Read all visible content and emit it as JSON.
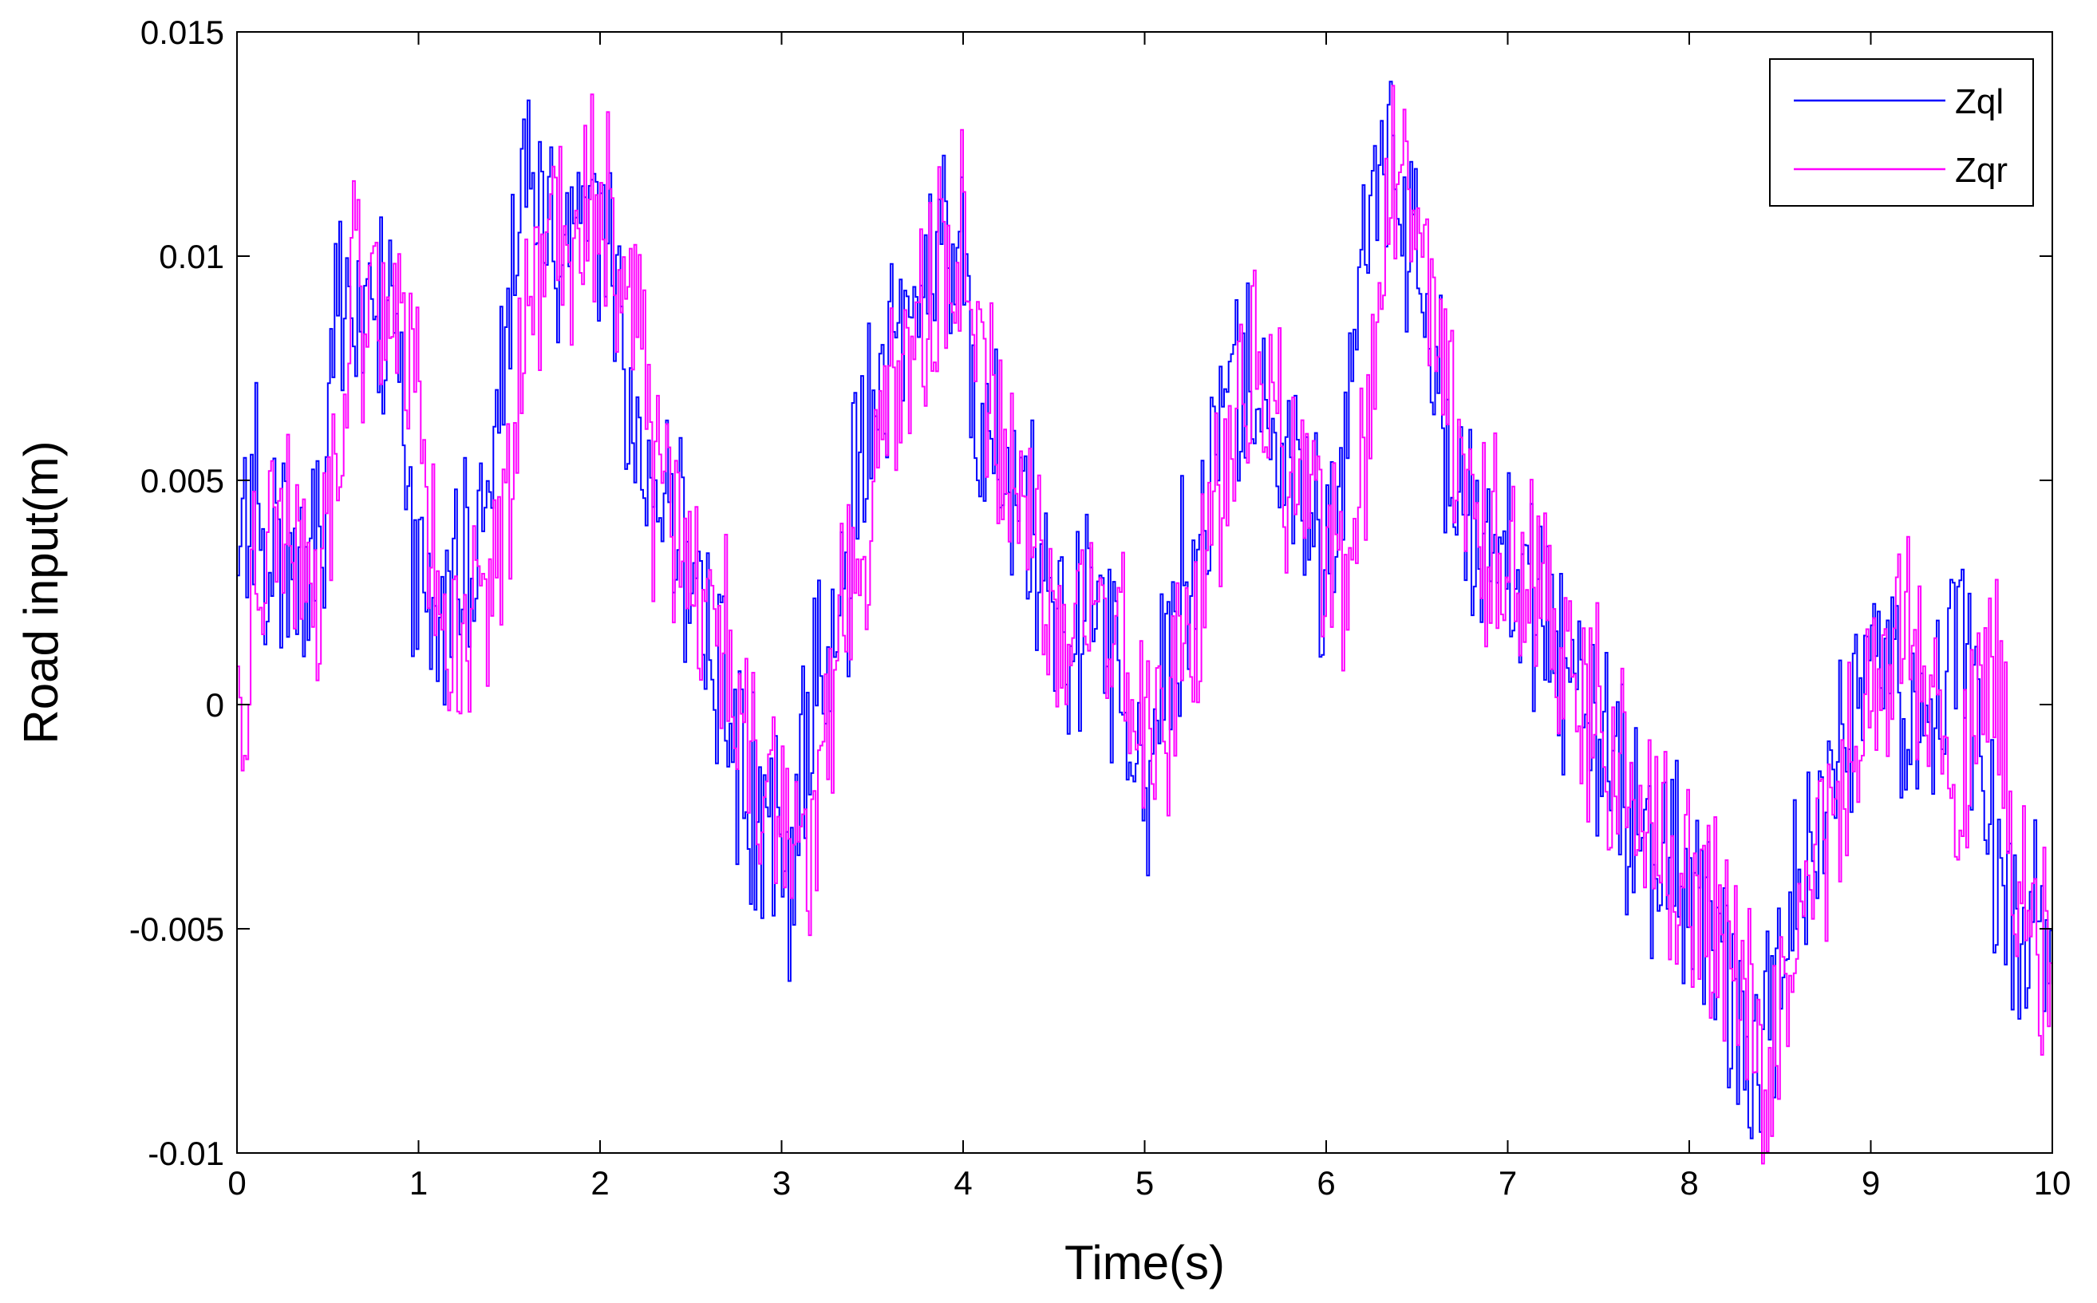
{
  "chart_data": {
    "type": "line",
    "title": "",
    "xlabel": "Time(s)",
    "ylabel": "Road input(m)",
    "xlim": [
      0,
      10
    ],
    "ylim": [
      -0.01,
      0.015
    ],
    "xticks": [
      0,
      1,
      2,
      3,
      4,
      5,
      6,
      7,
      8,
      9,
      10
    ],
    "xtick_labels": [
      "0",
      "1",
      "2",
      "3",
      "4",
      "5",
      "6",
      "7",
      "8",
      "9",
      "10"
    ],
    "yticks": [
      -0.01,
      -0.005,
      0,
      0.005,
      0.01,
      0.015
    ],
    "ytick_labels": [
      "-0.01",
      "-0.005",
      "0",
      "0.005",
      "0.01",
      "0.015"
    ],
    "grid": false,
    "legend_position": "top-right",
    "series": [
      {
        "name": "Zql",
        "color": "#0000ff",
        "x": [
          0,
          0.05,
          0.1,
          0.2,
          0.3,
          0.4,
          0.5,
          0.55,
          0.6,
          0.7,
          0.8,
          0.9,
          0.95,
          1.0,
          1.1,
          1.2,
          1.3,
          1.4,
          1.5,
          1.6,
          1.7,
          1.8,
          1.9,
          2.0,
          2.1,
          2.2,
          2.3,
          2.4,
          2.5,
          2.6,
          2.7,
          2.8,
          2.9,
          3.0,
          3.05,
          3.1,
          3.2,
          3.3,
          3.4,
          3.5,
          3.6,
          3.7,
          3.8,
          3.9,
          4.0,
          4.1,
          4.2,
          4.3,
          4.4,
          4.5,
          4.6,
          4.7,
          4.8,
          4.9,
          5.0,
          5.1,
          5.2,
          5.3,
          5.4,
          5.5,
          5.6,
          5.7,
          5.8,
          5.9,
          6.0,
          6.1,
          6.2,
          6.3,
          6.35,
          6.4,
          6.5,
          6.6,
          6.7,
          6.8,
          6.9,
          7.0,
          7.1,
          7.2,
          7.3,
          7.4,
          7.5,
          7.6,
          7.7,
          7.8,
          7.9,
          8.0,
          8.1,
          8.2,
          8.3,
          8.35,
          8.4,
          8.5,
          8.6,
          8.7,
          8.8,
          8.9,
          9.0,
          9.1,
          9.2,
          9.3,
          9.4,
          9.5,
          9.6,
          9.7,
          9.8,
          9.9,
          10.0
        ],
        "y": [
          0.0005,
          0.004,
          0.005,
          0.0035,
          0.003,
          0.0025,
          0.005,
          0.009,
          0.0095,
          0.0088,
          0.0085,
          0.009,
          0.004,
          0.0025,
          0.0015,
          0.002,
          0.004,
          0.0055,
          0.009,
          0.0115,
          0.0115,
          0.0095,
          0.012,
          0.011,
          0.009,
          0.0055,
          0.0045,
          0.004,
          0.0025,
          0.0015,
          0.0005,
          -0.0015,
          -0.0025,
          -0.0035,
          -0.0045,
          -0.002,
          0.0005,
          0.002,
          0.004,
          0.0065,
          0.008,
          0.009,
          0.0095,
          0.011,
          0.0095,
          0.0065,
          0.0055,
          0.005,
          0.0035,
          0.002,
          0.0015,
          0.002,
          0.0015,
          0.0005,
          -0.0015,
          0.0005,
          0.002,
          0.004,
          0.006,
          0.0075,
          0.0075,
          0.0065,
          0.005,
          0.0045,
          0.003,
          0.0055,
          0.009,
          0.0115,
          0.013,
          0.0115,
          0.0095,
          0.0075,
          0.0055,
          0.004,
          0.003,
          0.003,
          0.0025,
          0.002,
          0.001,
          0.0005,
          -0.001,
          -0.0015,
          -0.0025,
          -0.003,
          -0.0035,
          -0.0045,
          -0.005,
          -0.0055,
          -0.0075,
          -0.0085,
          -0.008,
          -0.006,
          -0.0045,
          -0.0035,
          -0.002,
          -0.0005,
          0.001,
          0.0015,
          -0.0005,
          -0.0015,
          0.0005,
          0.0015,
          -0.0005,
          -0.0035,
          -0.0055,
          -0.0045,
          -0.0045
        ]
      },
      {
        "name": "Zqr",
        "color": "#ff00ff",
        "x": [
          0,
          0.05,
          0.1,
          0.2,
          0.3,
          0.4,
          0.5,
          0.6,
          0.65,
          0.7,
          0.8,
          0.9,
          1.0,
          1.05,
          1.1,
          1.2,
          1.3,
          1.4,
          1.5,
          1.6,
          1.7,
          1.8,
          1.9,
          2.0,
          2.1,
          2.2,
          2.3,
          2.4,
          2.5,
          2.6,
          2.7,
          2.8,
          2.9,
          3.0,
          3.1,
          3.15,
          3.2,
          3.3,
          3.4,
          3.5,
          3.6,
          3.7,
          3.8,
          3.9,
          4.0,
          4.1,
          4.2,
          4.3,
          4.4,
          4.5,
          4.6,
          4.7,
          4.8,
          4.9,
          5.0,
          5.1,
          5.2,
          5.3,
          5.4,
          5.5,
          5.6,
          5.7,
          5.8,
          5.9,
          6.0,
          6.1,
          6.2,
          6.3,
          6.4,
          6.45,
          6.5,
          6.6,
          6.7,
          6.8,
          6.9,
          7.0,
          7.1,
          7.2,
          7.3,
          7.4,
          7.5,
          7.6,
          7.7,
          7.8,
          7.9,
          8.0,
          8.1,
          8.2,
          8.3,
          8.4,
          8.45,
          8.5,
          8.6,
          8.7,
          8.8,
          8.9,
          9.0,
          9.1,
          9.2,
          9.3,
          9.4,
          9.5,
          9.6,
          9.7,
          9.8,
          9.9,
          10.0
        ],
        "y": [
          0.0,
          -0.0005,
          0.003,
          0.0045,
          0.0035,
          0.003,
          0.003,
          0.008,
          0.0095,
          0.0088,
          0.009,
          0.0085,
          0.0075,
          0.003,
          0.0035,
          0.001,
          0.002,
          0.003,
          0.0045,
          0.0085,
          0.0105,
          0.0105,
          0.0105,
          0.0115,
          0.0095,
          0.0085,
          0.005,
          0.0045,
          0.003,
          0.002,
          0.0015,
          0.0,
          -0.002,
          -0.0025,
          -0.003,
          -0.004,
          -0.0015,
          0.0005,
          0.0025,
          0.0045,
          0.0065,
          0.0075,
          0.0085,
          0.0095,
          0.0105,
          0.0075,
          0.006,
          0.005,
          0.0035,
          0.0025,
          0.002,
          0.0025,
          0.0015,
          0.001,
          0.0,
          -0.001,
          0.001,
          0.0025,
          0.0045,
          0.0065,
          0.0075,
          0.007,
          0.0055,
          0.0045,
          0.0035,
          0.0025,
          0.005,
          0.0085,
          0.012,
          0.0125,
          0.011,
          0.0085,
          0.0065,
          0.0045,
          0.0035,
          0.0035,
          0.0025,
          0.0025,
          0.0015,
          0.0,
          0.0,
          -0.0015,
          -0.002,
          -0.002,
          -0.0035,
          -0.004,
          -0.0045,
          -0.005,
          -0.0055,
          -0.0075,
          -0.008,
          -0.007,
          -0.0055,
          -0.004,
          -0.0025,
          -0.001,
          0.0,
          0.0015,
          0.0025,
          0.0005,
          -0.001,
          -0.0025,
          0.0,
          0.0005,
          -0.0035,
          -0.005,
          -0.0055
        ]
      }
    ]
  }
}
